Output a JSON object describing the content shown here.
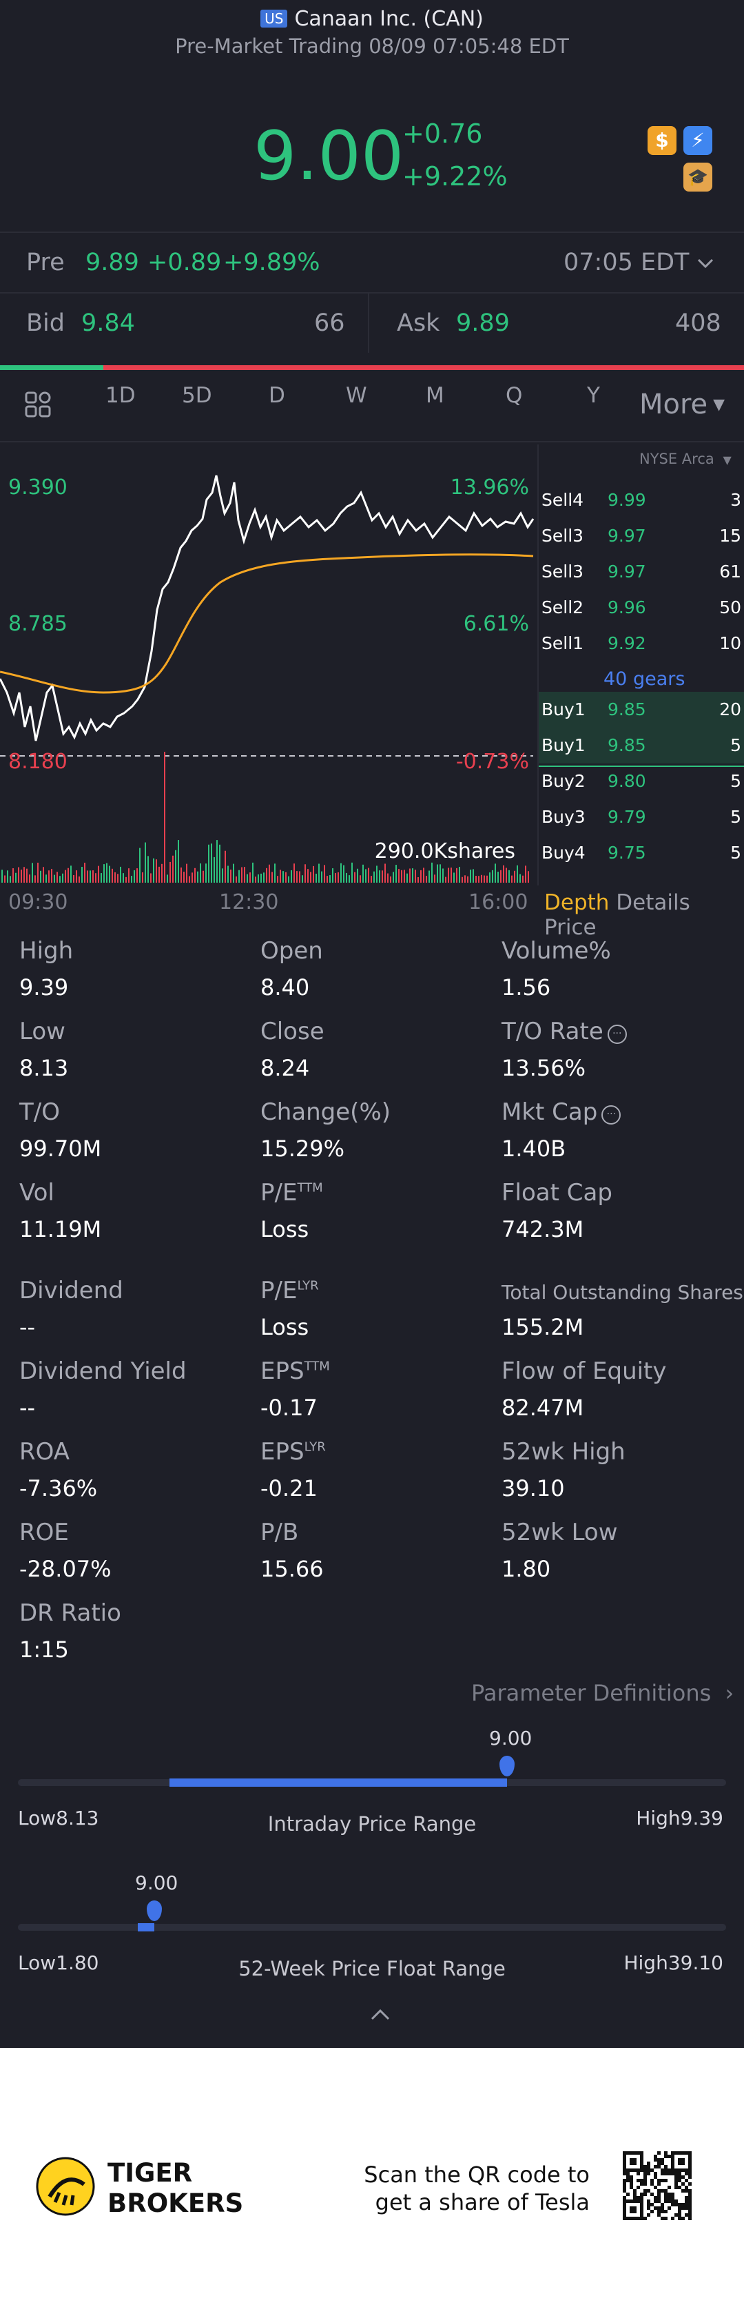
{
  "header": {
    "market_badge": "US",
    "title": "Canaan Inc. (CAN)",
    "subtitle": "Pre-Market Trading 08/09 07:05:48 EDT"
  },
  "quote": {
    "price": "9.00",
    "change": "+0.76",
    "change_pct": "+9.22%"
  },
  "pre": {
    "label": "Pre",
    "price": "9.89",
    "change": "+0.89",
    "change_pct": "+9.89%",
    "time": "07:05 EDT"
  },
  "bidask": {
    "bid_label": "Bid",
    "bid": "9.84",
    "bid_size": "66",
    "ask_label": "Ask",
    "ask": "9.89",
    "ask_size": "408"
  },
  "tabs": {
    "items": [
      "1D",
      "5D",
      "D",
      "W",
      "M",
      "Q",
      "Y"
    ],
    "more": "More",
    "active": "1D"
  },
  "chart": {
    "exchange": "NYSE Arca",
    "y_high": "9.390",
    "y_mid": "8.785",
    "y_low": "8.180",
    "pct_high": "13.96%",
    "pct_mid": "6.61%",
    "pct_low": "-0.73%",
    "volume_label": "290.0Kshares",
    "x_ticks": [
      "09:30",
      "12:30",
      "16:00"
    ]
  },
  "orderbook": {
    "sell": [
      {
        "label": "Sell4",
        "price": "9.99",
        "size": "3"
      },
      {
        "label": "Sell3",
        "price": "9.97",
        "size": "15"
      },
      {
        "label": "Sell3",
        "price": "9.97",
        "size": "61"
      },
      {
        "label": "Sell2",
        "price": "9.96",
        "size": "50"
      },
      {
        "label": "Sell1",
        "price": "9.92",
        "size": "10"
      }
    ],
    "gears": "40 gears",
    "buy": [
      {
        "label": "Buy1",
        "price": "9.85",
        "size": "20"
      },
      {
        "label": "Buy1",
        "price": "9.85",
        "size": "5"
      },
      {
        "label": "Buy2",
        "price": "9.80",
        "size": "5"
      },
      {
        "label": "Buy3",
        "price": "9.79",
        "size": "5"
      },
      {
        "label": "Buy4",
        "price": "9.75",
        "size": "5"
      }
    ],
    "tabs": [
      "Depth",
      "Details",
      "Price"
    ]
  },
  "stats": [
    {
      "label": "High",
      "value": "9.39"
    },
    {
      "label": "Open",
      "value": "8.40"
    },
    {
      "label": "Volume%",
      "value": "1.56"
    },
    {
      "label": "Low",
      "value": "8.13"
    },
    {
      "label": "Close",
      "value": "8.24"
    },
    {
      "label": "T/O Rate",
      "value": "13.56%"
    },
    {
      "label": "T/O",
      "value": "99.70M"
    },
    {
      "label": "Change(%)",
      "value": "15.29%"
    },
    {
      "label": "Mkt Cap",
      "value": "1.40B"
    },
    {
      "label": "Vol",
      "value": "11.19M"
    },
    {
      "label": "P/E",
      "sup": "TTM",
      "value": "Loss"
    },
    {
      "label": "Float Cap",
      "value": "742.3M"
    },
    {
      "label": "Dividend",
      "value": "--"
    },
    {
      "label": "P/E",
      "sup": "LYR",
      "value": "Loss"
    },
    {
      "label": "Total Outstanding Shares",
      "value": "155.2M"
    },
    {
      "label": "Dividend Yield",
      "value": "--"
    },
    {
      "label": "EPS",
      "sup": "TTM",
      "value": "-0.17"
    },
    {
      "label": "Flow of Equity",
      "value": "82.47M"
    },
    {
      "label": "ROA",
      "value": "-7.36%"
    },
    {
      "label": "EPS",
      "sup": "LYR",
      "value": "-0.21"
    },
    {
      "label": "52wk High",
      "value": "39.10"
    },
    {
      "label": "ROE",
      "value": "-28.07%"
    },
    {
      "label": "P/B",
      "value": "15.66"
    },
    {
      "label": "52wk Low",
      "value": "1.80"
    },
    {
      "label": "DR Ratio",
      "value": "1:15"
    }
  ],
  "param_defs": "Parameter Definitions",
  "intraday": {
    "current": "9.00",
    "low_label": "Low",
    "low": "8.13",
    "high_label": "High",
    "high": "9.39",
    "title": "Intraday Price Range"
  },
  "week52": {
    "current": "9.00",
    "low_label": "Low",
    "low": "1.80",
    "high_label": "High",
    "high": "39.10",
    "title": "52-Week Price Float Range"
  },
  "footer": {
    "brand_line1": "TIGER",
    "brand_line2": "BROKERS",
    "qr_line1": "Scan the QR code to",
    "qr_line2": "get a share of Tesla"
  },
  "colors": {
    "up": "#2ec37e",
    "down": "#e8404f",
    "accent": "#4073e8",
    "active_tab": "#f0b429"
  }
}
